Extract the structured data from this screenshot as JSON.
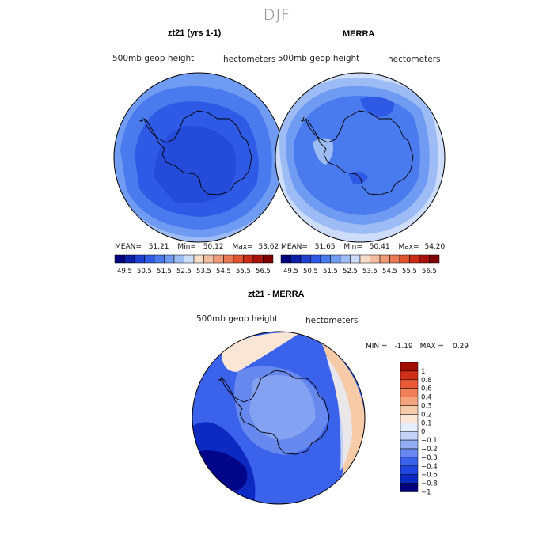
{
  "figure": {
    "season": "DJF",
    "units": "hectometers",
    "variable": "500mb geop height"
  },
  "colors": {
    "abs_scale": [
      "#00007f",
      "#0b1fa8",
      "#1f3fcf",
      "#2e5ae6",
      "#4a7bee",
      "#6f9bf2",
      "#9dbcf5",
      "#cddcf9",
      "#f6ddca",
      "#f2bca0",
      "#ef9a76",
      "#ea7852",
      "#e0532f",
      "#cb2b14",
      "#a8120a",
      "#7f0000"
    ],
    "diff_scale": [
      "#00007f",
      "#0c2ac2",
      "#1f46e0",
      "#3a62ea",
      "#6688ef",
      "#93adf4",
      "#c3d3f8",
      "#e6edfb",
      "#fbe6d6",
      "#f7caa8",
      "#f4a47c",
      "#ef7f57",
      "#e75a35",
      "#cf3018",
      "#a30c00"
    ]
  },
  "chart_data": [
    {
      "type": "heatmap",
      "projection": "south-polar-stereographic",
      "title": "zt21 (yrs 1-1)",
      "subtitle_left": "500mb geop height",
      "subtitle_right": "hectometers",
      "stats": {
        "mean_label": "MEAN=",
        "mean": "51.21",
        "min_label": "Min=",
        "min": "50.12",
        "max_label": "Max=",
        "max": "53.62"
      },
      "colorbar": {
        "orientation": "horizontal",
        "levels": [
          49.5,
          50,
          50.5,
          51,
          51.5,
          52,
          52.5,
          53,
          53.5,
          54,
          54.5,
          55,
          55.5,
          56,
          56.5
        ],
        "tick_labels": [
          "49.5",
          "50.5",
          "51.5",
          "52.5",
          "53.5",
          "54.5",
          "55.5",
          "56.5"
        ]
      }
    },
    {
      "type": "heatmap",
      "projection": "south-polar-stereographic",
      "title": "MERRA",
      "subtitle_left": "500mb geop height",
      "subtitle_right": "hectometers",
      "stats": {
        "mean_label": "MEAN=",
        "mean": "51.65",
        "min_label": "Min=",
        "min": "50.41",
        "max_label": "Max=",
        "max": "54.20"
      },
      "colorbar": {
        "orientation": "horizontal",
        "levels": [
          49.5,
          50,
          50.5,
          51,
          51.5,
          52,
          52.5,
          53,
          53.5,
          54,
          54.5,
          55,
          55.5,
          56,
          56.5
        ],
        "tick_labels": [
          "49.5",
          "50.5",
          "51.5",
          "52.5",
          "53.5",
          "54.5",
          "55.5",
          "56.5"
        ]
      }
    },
    {
      "type": "heatmap",
      "projection": "south-polar-stereographic",
      "title": "zt21 - MERRA",
      "subtitle_left": "500mb geop height",
      "subtitle_right": "hectometers",
      "stats_text": {
        "min_label": "MIN =",
        "min": "-1.19",
        "max_label": "MAX =",
        "max": "0.29"
      },
      "colorbar": {
        "orientation": "vertical",
        "levels": [
          -1,
          -0.8,
          -0.6,
          -0.4,
          -0.3,
          -0.2,
          -0.1,
          0,
          0.1,
          0.2,
          0.3,
          0.4,
          0.6,
          0.8,
          1
        ],
        "tick_labels": [
          "1",
          "0.8",
          "0.6",
          "0.4",
          "0.3",
          "0.2",
          "0.1",
          "0",
          "−0.1",
          "−0.2",
          "−0.3",
          "−0.4",
          "−0.6",
          "−0.8",
          "−1"
        ]
      }
    }
  ]
}
